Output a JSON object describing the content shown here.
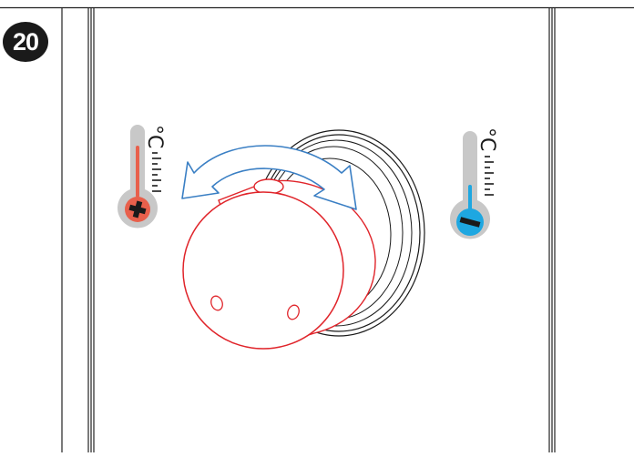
{
  "step": {
    "number": "20"
  },
  "thermometer_hot": {
    "unit": "°C",
    "sign": "+",
    "color": "#e8604c"
  },
  "thermometer_cold": {
    "unit": "°C",
    "sign": "−",
    "color": "#1ea7e1"
  },
  "colors": {
    "knob_outline": "#e0242a",
    "arrow": "#3a7fc4",
    "thermometer_body": "#c8c8c8"
  }
}
